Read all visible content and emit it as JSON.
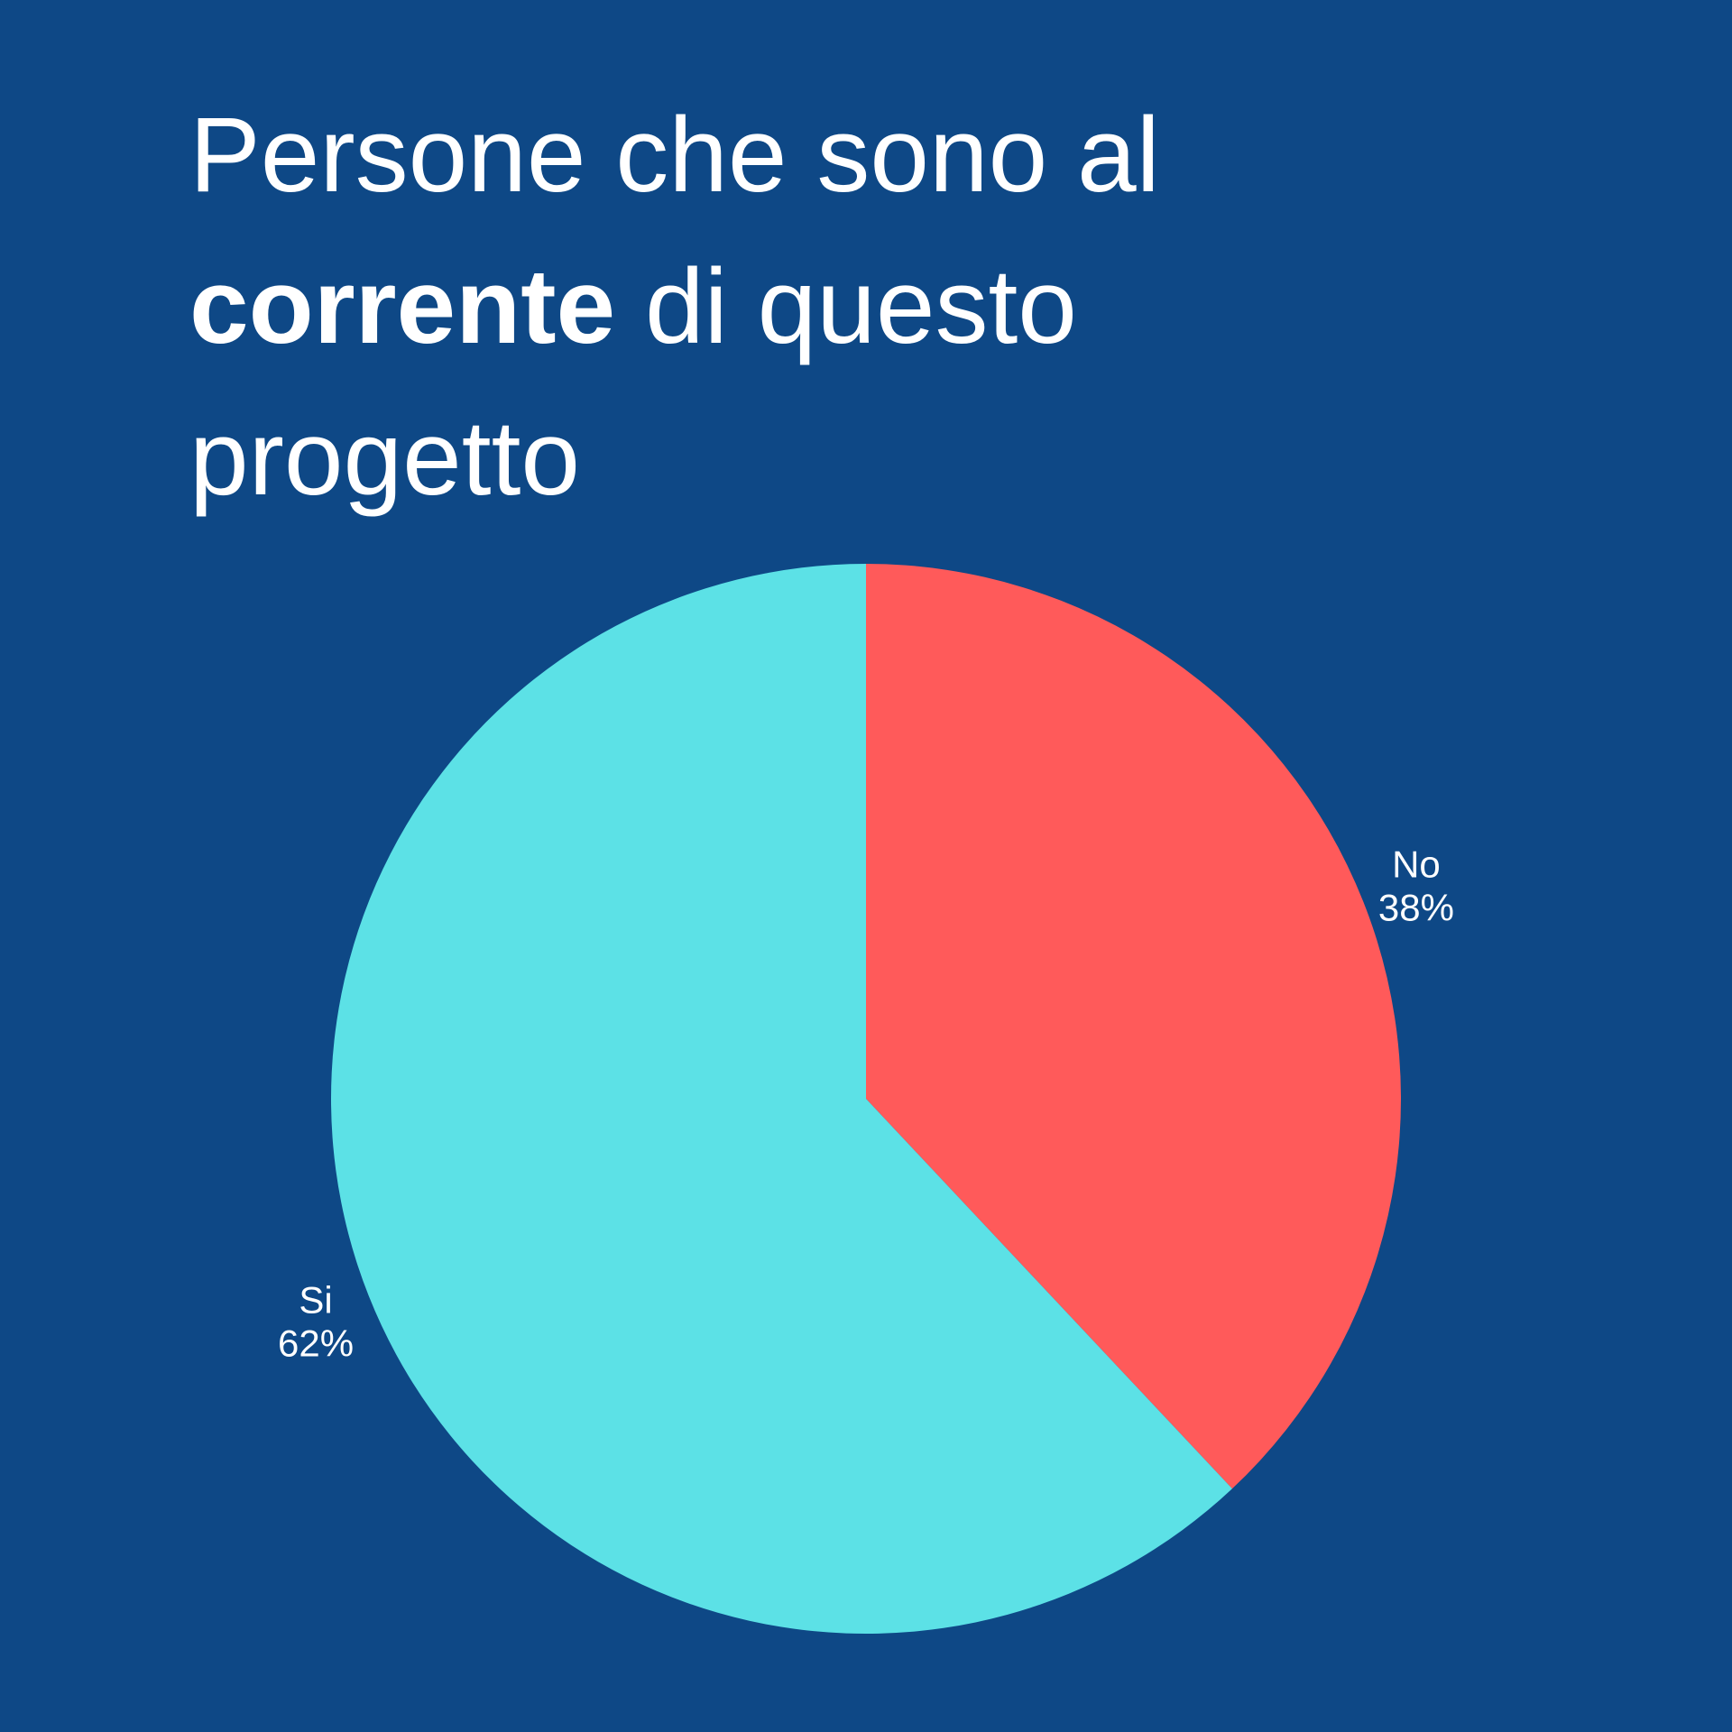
{
  "title": {
    "part1": "Persone che sono al ",
    "bold": "corrente",
    "part2": " di questo progetto"
  },
  "colors": {
    "background": "#0e4886",
    "text": "#ffffff"
  },
  "chart_data": {
    "type": "pie",
    "title": "Persone che sono al corrente di questo progetto",
    "start_angle_deg": 0,
    "direction": "clockwise",
    "slices": [
      {
        "label": "No",
        "value": 38,
        "value_label": "38%",
        "color": "#ff5a5a"
      },
      {
        "label": "Si",
        "value": 62,
        "value_label": "62%",
        "color": "#5ce1e6"
      }
    ]
  }
}
